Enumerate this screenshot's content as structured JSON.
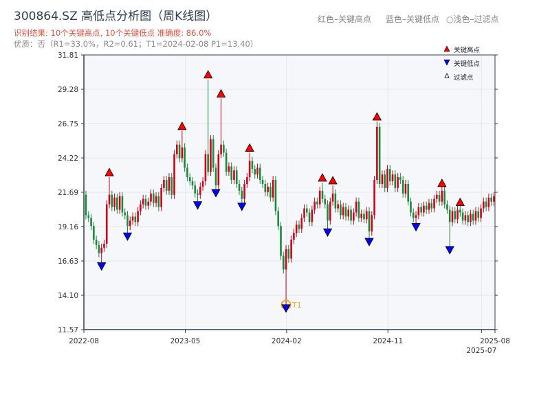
{
  "title": "300864.SZ 高低点分析图（周K线图）",
  "subtitle_result": "识别结果: 10个关键高点, 10个关键低点   准确度: 86.0%",
  "subtitle_quality": "优质：否（R1=33.0%，R2=0.61；T1=2024-02-08 P1=13.40）",
  "hints": [
    "红色–关键高点",
    "蓝色–关键低点",
    "○浅色–过滤点"
  ],
  "colors": {
    "up": "#d0021b",
    "down": "#1a8a3a",
    "high_marker": "#ff0000",
    "low_marker": "#0000ff",
    "t1": "#f5a623",
    "axis": "#2c3e50",
    "plot_bg": "#f5f7fa",
    "grid": "#e3e7ec"
  },
  "chart_data": {
    "type": "candlestick",
    "ylim": [
      11.57,
      31.81
    ],
    "yticks": [
      "11.57",
      "14.10",
      "16.63",
      "19.16",
      "21.69",
      "24.22",
      "26.75",
      "29.28",
      "31.81"
    ],
    "xticks": [
      {
        "label": "2022-08",
        "week": 0
      },
      {
        "label": "2023-05",
        "week": 39
      },
      {
        "label": "2024-02",
        "week": 78
      },
      {
        "label": "2024-11",
        "week": 117
      },
      {
        "label": "2025-07",
        "week": 153
      },
      {
        "label": "2025-08",
        "week": 157
      }
    ],
    "first_open": 21.5,
    "closes": [
      20.0,
      19.8,
      19.2,
      18.2,
      17.8,
      17.2,
      17.6,
      17.9,
      20.8,
      21.5,
      20.6,
      21.3,
      20.4,
      21.4,
      20.2,
      20.0,
      19.2,
      19.6,
      19.9,
      19.5,
      20.3,
      20.8,
      21.2,
      20.7,
      21.0,
      21.6,
      20.9,
      21.4,
      20.6,
      22.0,
      22.6,
      21.8,
      22.8,
      21.5,
      24.5,
      25.2,
      24.2,
      25.0,
      23.5,
      22.8,
      22.5,
      22.2,
      21.6,
      21.5,
      22.1,
      22.5,
      24.5,
      23.2,
      25.6,
      23.5,
      22.2,
      24.5,
      25.2,
      24.6,
      23.2,
      23.6,
      22.6,
      23.3,
      22.3,
      21.8,
      21.2,
      22.3,
      22.8,
      24.0,
      23.4,
      23.0,
      23.5,
      22.6,
      22.3,
      21.7,
      22.1,
      21.3,
      22.6,
      20.3,
      19.2,
      17.0,
      16.0,
      17.5,
      16.8,
      18.2,
      18.7,
      19.3,
      19.0,
      19.8,
      20.5,
      20.2,
      19.5,
      20.4,
      21.0,
      20.8,
      21.8,
      21.2,
      20.8,
      19.6,
      21.0,
      21.6,
      20.5,
      20.8,
      20.0,
      20.6,
      19.9,
      20.4,
      19.6,
      20.2,
      21.0,
      19.8,
      20.1,
      19.7,
      20.3,
      18.8,
      20.0,
      22.6,
      26.5,
      22.3,
      23.0,
      22.0,
      23.4,
      22.5,
      23.0,
      22.0,
      22.8,
      22.6,
      21.6,
      22.3,
      21.0,
      20.2,
      19.8,
      20.0,
      20.6,
      20.2,
      20.7,
      20.4,
      20.9,
      20.5,
      21.2,
      21.5,
      21.0,
      21.8,
      20.8,
      20.4,
      19.5,
      20.3,
      19.7,
      20.4,
      20.2,
      19.6,
      20.0,
      19.5,
      20.1,
      19.6,
      20.3,
      19.8,
      20.5,
      21.0,
      20.6,
      21.3,
      21.0,
      21.4
    ],
    "key_highs": [
      {
        "week": 9,
        "price": 22.8
      },
      {
        "week": 37,
        "price": 26.2
      },
      {
        "week": 47,
        "price": 30.0
      },
      {
        "week": 52,
        "price": 28.6
      },
      {
        "week": 63,
        "price": 24.6
      },
      {
        "week": 91,
        "price": 22.4
      },
      {
        "week": 95,
        "price": 22.2
      },
      {
        "week": 112,
        "price": 26.9
      },
      {
        "week": 137,
        "price": 22.0
      },
      {
        "week": 144,
        "price": 20.6
      }
    ],
    "key_lows": [
      {
        "week": 6,
        "price": 16.5
      },
      {
        "week": 16,
        "price": 18.7
      },
      {
        "week": 43,
        "price": 21.0
      },
      {
        "week": 50,
        "price": 21.9
      },
      {
        "week": 60,
        "price": 20.9
      },
      {
        "week": 77,
        "price": 13.4
      },
      {
        "week": 93,
        "price": 19.0
      },
      {
        "week": 109,
        "price": 18.3
      },
      {
        "week": 127,
        "price": 19.4
      },
      {
        "week": 140,
        "price": 17.7
      }
    ],
    "t1": {
      "week": 77,
      "price": 13.4,
      "label": "T1"
    },
    "legend": {
      "position": "top-right",
      "entries": [
        "关键高点",
        "关键低点",
        "过滤点"
      ]
    }
  }
}
